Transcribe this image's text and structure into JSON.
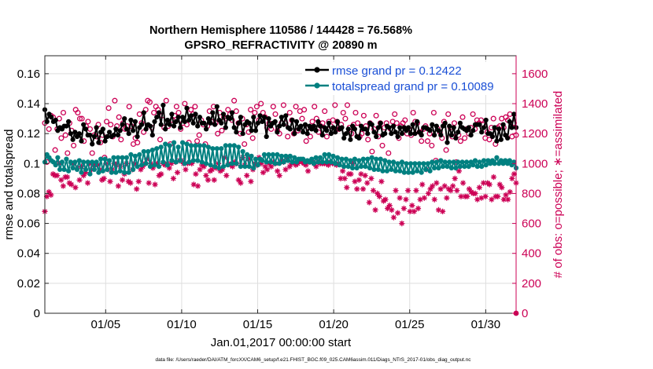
{
  "chart_data": {
    "type": "line",
    "title": "Northern Hemisphere 110586 / 144428 = 76.568%",
    "subtitle": "GPSRO_REFRACTIVITY @ 20890 m",
    "xlabel": "Jan.01,2017 00:00:00 start",
    "ylabel_left": "rmse and totalspread",
    "ylabel_right": "# of obs: o=possible; ∗=assimilated",
    "footer": "data file: /Users/raeder/DAI/ATM_forcXX/CAM6_setup/f.e21.FHIST_BGC.f09_025.CAM6assim.011/Diags_NTrS_2017-01/obs_diag_output.nc",
    "xlim": [
      1,
      32
    ],
    "x_ticks": [
      5,
      10,
      15,
      20,
      25,
      30
    ],
    "x_tick_labels": [
      "01/05",
      "01/10",
      "01/15",
      "01/20",
      "01/25",
      "01/30"
    ],
    "ylim_left": [
      0,
      0.172
    ],
    "y_ticks_left": [
      0,
      0.02,
      0.04,
      0.06,
      0.08,
      0.1,
      0.12,
      0.14,
      0.16
    ],
    "y_tick_labels_left": [
      "0",
      "0.02",
      "0.04",
      "0.06",
      "0.08",
      "0.1",
      "0.12",
      "0.14",
      "0.16"
    ],
    "ylim_right": [
      0,
      1720
    ],
    "y_ticks_right": [
      0,
      200,
      400,
      600,
      800,
      1000,
      1200,
      1400,
      1600
    ],
    "y_tick_labels_right": [
      "0",
      "200",
      "400",
      "600",
      "800",
      "1000",
      "1200",
      "1400",
      "1600"
    ],
    "grid": true,
    "legend_placement": "top-right",
    "colors": {
      "rmse": "#000000",
      "spread": "#008080",
      "obs": "#cc0055",
      "legend_text": "#1a4fd6"
    },
    "series": [
      {
        "name": "rmse grand pr = 0.12422",
        "axis": "left",
        "marker": "star",
        "values": [
          0.136,
          0.128,
          0.133,
          0.131,
          0.128,
          0.129,
          0.122,
          0.124,
          0.123,
          0.125,
          0.125,
          0.128,
          0.12,
          0.116,
          0.121,
          0.118,
          0.12,
          0.115,
          0.126,
          0.123,
          0.119,
          0.119,
          0.113,
          0.118,
          0.124,
          0.114,
          0.121,
          0.123,
          0.115,
          0.118,
          0.121,
          0.118,
          0.119,
          0.123,
          0.119,
          0.122,
          0.126,
          0.13,
          0.123,
          0.12,
          0.129,
          0.122,
          0.128,
          0.118,
          0.124,
          0.126,
          0.134,
          0.123,
          0.126,
          0.125,
          0.119,
          0.128,
          0.131,
          0.134,
          0.126,
          0.139,
          0.123,
          0.129,
          0.126,
          0.133,
          0.125,
          0.128,
          0.131,
          0.124,
          0.131,
          0.128,
          0.137,
          0.129,
          0.132,
          0.127,
          0.133,
          0.125,
          0.131,
          0.127,
          0.127,
          0.123,
          0.13,
          0.127,
          0.134,
          0.126,
          0.138,
          0.129,
          0.127,
          0.133,
          0.124,
          0.131,
          0.13,
          0.134,
          0.124,
          0.121,
          0.127,
          0.131,
          0.12,
          0.126,
          0.128,
          0.127,
          0.122,
          0.131,
          0.122,
          0.127,
          0.132,
          0.128,
          0.131,
          0.118,
          0.13,
          0.125,
          0.127,
          0.128,
          0.121,
          0.125,
          0.131,
          0.126,
          0.132,
          0.124,
          0.123,
          0.129,
          0.12,
          0.128,
          0.123,
          0.125,
          0.121,
          0.126,
          0.12,
          0.125,
          0.123,
          0.125,
          0.122,
          0.128,
          0.125,
          0.119,
          0.124,
          0.122,
          0.127,
          0.12,
          0.124,
          0.121,
          0.128,
          0.123,
          0.124,
          0.117,
          0.12,
          0.123,
          0.116,
          0.125,
          0.123,
          0.118,
          0.117,
          0.125,
          0.123,
          0.123,
          0.12,
          0.127,
          0.126,
          0.121,
          0.118,
          0.124,
          0.127,
          0.119,
          0.12,
          0.125,
          0.124,
          0.12,
          0.125,
          0.121,
          0.118,
          0.124,
          0.12,
          0.124,
          0.122,
          0.124,
          0.12,
          0.126,
          0.12,
          0.128,
          0.121,
          0.119,
          0.124,
          0.124,
          0.123,
          0.122,
          0.126,
          0.119,
          0.125,
          0.122,
          0.119,
          0.125,
          0.127,
          0.114,
          0.125,
          0.119,
          0.124,
          0.117,
          0.121,
          0.127,
          0.124,
          0.123,
          0.122,
          0.124,
          0.119,
          0.122,
          0.126,
          0.126,
          0.126,
          0.121,
          0.124,
          0.129,
          0.12,
          0.12,
          0.118,
          0.124,
          0.115,
          0.123,
          0.116,
          0.126,
          0.119,
          0.117,
          0.128,
          0.124,
          0.133,
          0.124
        ]
      },
      {
        "name": "totalspread grand pr = 0.10089",
        "axis": "left",
        "marker": "dot",
        "values": [
          0.101,
          0.106,
          0.104,
          0.102,
          0.101,
          0.099,
          0.104,
          0.096,
          0.101,
          0.096,
          0.103,
          0.095,
          0.101,
          0.097,
          0.101,
          0.096,
          0.102,
          0.094,
          0.101,
          0.096,
          0.101,
          0.093,
          0.101,
          0.096,
          0.101,
          0.094,
          0.103,
          0.095,
          0.103,
          0.096,
          0.102,
          0.094,
          0.104,
          0.094,
          0.104,
          0.095,
          0.104,
          0.094,
          0.104,
          0.094,
          0.106,
          0.096,
          0.105,
          0.098,
          0.106,
          0.099,
          0.108,
          0.1,
          0.108,
          0.098,
          0.109,
          0.099,
          0.11,
          0.098,
          0.111,
          0.101,
          0.113,
          0.099,
          0.112,
          0.102,
          0.114,
          0.101,
          0.111,
          0.102,
          0.114,
          0.1,
          0.113,
          0.101,
          0.112,
          0.102,
          0.112,
          0.102,
          0.112,
          0.101,
          0.112,
          0.1,
          0.111,
          0.099,
          0.11,
          0.098,
          0.11,
          0.097,
          0.11,
          0.098,
          0.112,
          0.099,
          0.112,
          0.1,
          0.112,
          0.1,
          0.111,
          0.098,
          0.108,
          0.098,
          0.106,
          0.098,
          0.105,
          0.097,
          0.103,
          0.099,
          0.103,
          0.102,
          0.106,
          0.101,
          0.106,
          0.101,
          0.106,
          0.1,
          0.106,
          0.1,
          0.105,
          0.101,
          0.105,
          0.102,
          0.105,
          0.101,
          0.104,
          0.101,
          0.103,
          0.103,
          0.103,
          0.101,
          0.102,
          0.101,
          0.103,
          0.1,
          0.104,
          0.101,
          0.104,
          0.101,
          0.106,
          0.101,
          0.106,
          0.101,
          0.105,
          0.1,
          0.104,
          0.099,
          0.103,
          0.098,
          0.103,
          0.098,
          0.102,
          0.097,
          0.103,
          0.097,
          0.102,
          0.098,
          0.103,
          0.098,
          0.103,
          0.097,
          0.104,
          0.096,
          0.103,
          0.096,
          0.103,
          0.095,
          0.102,
          0.095,
          0.101,
          0.096,
          0.101,
          0.095,
          0.1,
          0.095,
          0.101,
          0.094,
          0.1,
          0.094,
          0.1,
          0.094,
          0.1,
          0.095,
          0.1,
          0.094,
          0.1,
          0.096,
          0.1,
          0.095,
          0.101,
          0.097,
          0.101,
          0.097,
          0.102,
          0.098,
          0.101,
          0.098,
          0.101,
          0.097,
          0.101,
          0.097,
          0.101,
          0.098,
          0.101,
          0.098,
          0.101,
          0.098,
          0.101,
          0.099,
          0.102,
          0.098,
          0.101,
          0.098,
          0.102,
          0.099,
          0.102,
          0.1,
          0.102,
          0.1,
          0.104,
          0.1,
          0.102,
          0.1,
          0.102,
          0.1,
          0.102,
          0.099,
          0.101,
          0.097
        ]
      },
      {
        "name": "possible",
        "axis": "right",
        "marker": "circle",
        "values": [
          1270,
          1010,
          1230,
          1320,
          1310,
          1090,
          1230,
          1300,
          1170,
          1340,
          1190,
          1070,
          1270,
          1220,
          1120,
          1360,
          1340,
          1300,
          1300,
          1150,
          1250,
          1280,
          1230,
          1070,
          1190,
          1180,
          1260,
          1140,
          1190,
          1040,
          1280,
          1370,
          1260,
          1180,
          1420,
          1250,
          1310,
          1160,
          1270,
          1230,
          1250,
          1380,
          1250,
          1130,
          1170,
          1140,
          1330,
          1270,
          1210,
          1360,
          1420,
          1410,
          1240,
          1340,
          1380,
          1360,
          1160,
          1320,
          1240,
          1420,
          1250,
          1130,
          1290,
          1320,
          1380,
          1340,
          1230,
          1270,
          1400,
          1260,
          1140,
          1360,
          1330,
          1380,
          1150,
          1190,
          1290,
          1260,
          1130,
          1250,
          1350,
          1280,
          1380,
          1270,
          1200,
          1340,
          1220,
          1310,
          1300,
          1360,
          1330,
          1290,
          1420,
          1350,
          1270,
          1200,
          1300,
          1130,
          1260,
          1210,
          1360,
          1170,
          1340,
          1380,
          1290,
          1400,
          1340,
          1310,
          1240,
          1270,
          1230,
          1380,
          1330,
          1220,
          1200,
          1270,
          1390,
          1270,
          1180,
          1340,
          1290,
          1200,
          1380,
          1220,
          1350,
          1300,
          1360,
          1150,
          1240,
          1180,
          1280,
          1380,
          1300,
          1210,
          1250,
          1270,
          1350,
          1180,
          1280,
          1250,
          1290,
          1390,
          1280,
          1230,
          1260,
          1340,
          1300,
          1390,
          1240,
          1200,
          1260,
          1340,
          1270,
          1180,
          1200,
          1320,
          1250,
          1160,
          1270,
          1080,
          1230,
          1320,
          1180,
          1270,
          1120,
          1240,
          1270,
          1070,
          1230,
          1280,
          1330,
          1270,
          1170,
          1250,
          1270,
          1290,
          1200,
          1230,
          1190,
          1340,
          1280,
          1270,
          1210,
          1150,
          1230,
          1250,
          1150,
          1200,
          1120,
          1340,
          1020,
          1230,
          1210,
          1170,
          1280,
          1090,
          1330,
          1240,
          1180,
          1270,
          1010,
          1190,
          1150,
          1310,
          1170,
          1230,
          1200,
          1240,
          1330,
          1230,
          1290,
          1270,
          1290,
          1260,
          1170,
          1210,
          1160,
          1240,
          1300,
          1130,
          1240,
          1250,
          1300,
          1240,
          1310,
          1290,
          1330,
          1180,
          1270,
          1190
        ]
      },
      {
        "name": "assimilated",
        "axis": "right",
        "marker": "asterisk",
        "values": [
          680,
          780,
          810,
          790,
          930,
          920,
          920,
          1000,
          890,
          850,
          910,
          910,
          870,
          860,
          1000,
          840,
          970,
          890,
          980,
          920,
          940,
          870,
          1000,
          960,
          990,
          1000,
          990,
          960,
          890,
          900,
          1000,
          960,
          880,
          960,
          1000,
          990,
          850,
          980,
          890,
          930,
          1000,
          880,
          870,
          960,
          1000,
          830,
          880,
          960,
          980,
          1000,
          1030,
          870,
          1000,
          970,
          860,
          1000,
          920,
          930,
          1000,
          990,
          1000,
          970,
          1000,
          900,
          1010,
          940,
          1020,
          1020,
          1000,
          960,
          1000,
          1010,
          1000,
          860,
          930,
          850,
          960,
          990,
          980,
          920,
          890,
          950,
          960,
          890,
          970,
          1000,
          950,
          960,
          1040,
          920,
          1000,
          990,
          980,
          1010,
          1000,
          890,
          870,
          1040,
          990,
          920,
          1030,
          880,
          960,
          1000,
          990,
          1040,
          1000,
          940,
          980,
          960,
          1000,
          980,
          1010,
          1000,
          950,
          920,
          1020,
          1010,
          960,
          1040,
          980,
          1000,
          1010,
          990,
          1000,
          1020,
          1010,
          1000,
          990,
          950,
          1010,
          1010,
          1000,
          980,
          1010,
          1000,
          1000,
          1000,
          1000,
          990,
          1010,
          1000,
          1000,
          990,
          1000,
          900,
          950,
          900,
          840,
          930,
          930,
          1000,
          880,
          830,
          890,
          930,
          830,
          920,
          870,
          740,
          900,
          820,
          690,
          800,
          780,
          880,
          750,
          760,
          700,
          720,
          690,
          640,
          820,
          670,
          770,
          600,
          700,
          760,
          820,
          680,
          720,
          680,
          820,
          700,
          760,
          860,
          770,
          960,
          800,
          830,
          850,
          760,
          870,
          690,
          830,
          680,
          850,
          770,
          830,
          820,
          850,
          900,
          820,
          950,
          780,
          870,
          780,
          780,
          830,
          810,
          800,
          800,
          760,
          840,
          770,
          870,
          780,
          870,
          860,
          760,
          910,
          780,
          780,
          860,
          840,
          760,
          790,
          760,
          810,
          900,
          930,
          870
        ]
      }
    ]
  }
}
